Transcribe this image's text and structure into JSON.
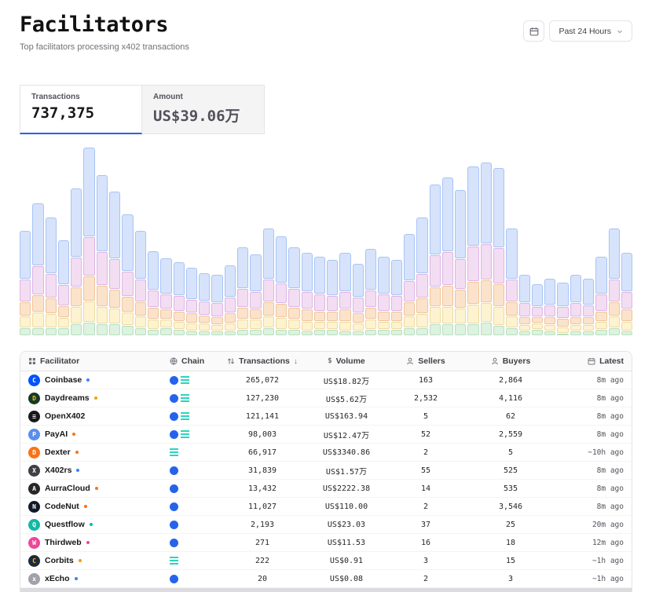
{
  "page": {
    "title": "Facilitators",
    "subtitle": "Top facilitators processing x402 transactions"
  },
  "time_filter": {
    "label": "Past 24 Hours"
  },
  "tabs": {
    "transactions": {
      "label": "Transactions",
      "value": "737,375"
    },
    "amount": {
      "label": "Amount",
      "value": "US$39.06万"
    }
  },
  "chart_data": {
    "type": "bar",
    "stacked": true,
    "bar_count": 48,
    "title": "",
    "xlabel": "",
    "ylabel": "",
    "legend": false,
    "axis_labels_visible": false,
    "ylim": [
      0,
      100
    ],
    "series": [
      {
        "name": "green-bottom",
        "fill": "#def2e0",
        "stroke": "#b7dfc0",
        "values": [
          4,
          4,
          4,
          4,
          6,
          7,
          6,
          6,
          5,
          4,
          3,
          4,
          3,
          2,
          2,
          2,
          2,
          3,
          3,
          4,
          3,
          3,
          2,
          3,
          3,
          2,
          2,
          3,
          3,
          3,
          4,
          4,
          6,
          6,
          6,
          6,
          7,
          5,
          4,
          2,
          3,
          2,
          1,
          2,
          2,
          3,
          4,
          2
        ]
      },
      {
        "name": "yellow",
        "fill": "#fdf3d0",
        "stroke": "#eedaa0",
        "values": [
          6,
          8,
          7,
          5,
          9,
          11,
          9,
          8,
          7,
          6,
          5,
          4,
          4,
          4,
          4,
          3,
          4,
          5,
          5,
          6,
          6,
          5,
          5,
          4,
          4,
          5,
          4,
          5,
          4,
          4,
          6,
          7,
          9,
          9,
          8,
          10,
          10,
          10,
          6,
          3,
          3,
          3,
          3,
          3,
          3,
          4,
          6,
          5
        ]
      },
      {
        "name": "orange",
        "fill": "#fbe3cb",
        "stroke": "#f0c49a",
        "values": [
          7,
          9,
          8,
          6,
          10,
          13,
          11,
          10,
          8,
          7,
          6,
          5,
          5,
          5,
          4,
          4,
          5,
          6,
          5,
          7,
          7,
          6,
          6,
          5,
          5,
          6,
          5,
          6,
          5,
          5,
          7,
          8,
          10,
          11,
          10,
          12,
          12,
          12,
          7,
          4,
          3,
          4,
          4,
          4,
          4,
          5,
          7,
          6
        ]
      },
      {
        "name": "pink",
        "fill": "#f3ddf2",
        "stroke": "#ddb5e4",
        "values": [
          12,
          15,
          13,
          11,
          16,
          21,
          18,
          16,
          13,
          12,
          9,
          8,
          8,
          7,
          7,
          7,
          8,
          10,
          9,
          12,
          11,
          10,
          9,
          9,
          8,
          9,
          8,
          9,
          9,
          8,
          11,
          13,
          17,
          18,
          16,
          19,
          19,
          19,
          12,
          7,
          5,
          6,
          6,
          7,
          6,
          9,
          12,
          9
        ]
      },
      {
        "name": "blue-top",
        "fill": "#d6e3fb",
        "stroke": "#a9c4f5",
        "values": [
          26,
          34,
          30,
          24,
          37,
          48,
          41,
          36,
          31,
          26,
          21,
          19,
          18,
          17,
          15,
          15,
          17,
          22,
          20,
          27,
          25,
          22,
          21,
          20,
          19,
          21,
          18,
          22,
          20,
          19,
          25,
          30,
          38,
          40,
          37,
          43,
          44,
          43,
          27,
          15,
          12,
          14,
          13,
          15,
          14,
          20,
          27,
          21
        ]
      }
    ]
  },
  "table": {
    "sort_indicator": "↓",
    "columns": [
      {
        "label": "Facilitator"
      },
      {
        "label": "Chain"
      },
      {
        "label": "Transactions"
      },
      {
        "label": "Volume"
      },
      {
        "label": "Sellers"
      },
      {
        "label": "Buyers"
      },
      {
        "label": "Latest"
      }
    ],
    "rows": [
      {
        "name": "Coinbase",
        "dot": "#3b82f6",
        "logo": {
          "bg": "#0052ff",
          "glyph": "C",
          "color": "#ffffff"
        },
        "chains": [
          "base",
          "solana"
        ],
        "transactions": "265,072",
        "volume": "US$18.82万",
        "sellers": "163",
        "buyers": "2,864",
        "latest": "8m ago"
      },
      {
        "name": "Daydreams",
        "dot": "#f59e0b",
        "logo": {
          "bg": "#163a21",
          "glyph": "D",
          "color": "#fbbf24"
        },
        "chains": [
          "base",
          "solana"
        ],
        "transactions": "127,230",
        "volume": "US$5.62万",
        "sellers": "2,532",
        "buyers": "4,116",
        "latest": "8m ago"
      },
      {
        "name": "OpenX402",
        "dot": null,
        "logo": {
          "bg": "#18181b",
          "glyph": "≡",
          "color": "#ffffff"
        },
        "chains": [
          "base",
          "solana"
        ],
        "transactions": "121,141",
        "volume": "US$163.94",
        "sellers": "5",
        "buyers": "62",
        "latest": "8m ago"
      },
      {
        "name": "PayAI",
        "dot": "#f97316",
        "logo": {
          "bg": "#5b8def",
          "glyph": "P",
          "color": "#ffffff"
        },
        "chains": [
          "base",
          "solana"
        ],
        "transactions": "98,003",
        "volume": "US$12.47万",
        "sellers": "52",
        "buyers": "2,559",
        "latest": "8m ago"
      },
      {
        "name": "Dexter",
        "dot": "#f97316",
        "logo": {
          "bg": "#f97316",
          "glyph": "D",
          "color": "#ffffff"
        },
        "chains": [
          "solana"
        ],
        "transactions": "66,917",
        "volume": "US$3340.86",
        "sellers": "2",
        "buyers": "5",
        "latest": "~10h ago"
      },
      {
        "name": "X402rs",
        "dot": "#3b82f6",
        "logo": {
          "bg": "#3f3f46",
          "glyph": "X",
          "color": "#ffffff"
        },
        "chains": [
          "base"
        ],
        "transactions": "31,839",
        "volume": "US$1.57万",
        "sellers": "55",
        "buyers": "525",
        "latest": "8m ago"
      },
      {
        "name": "AurraCloud",
        "dot": "#f97316",
        "logo": {
          "bg": "#27272a",
          "glyph": "A",
          "color": "#ffffff"
        },
        "chains": [
          "base"
        ],
        "transactions": "13,432",
        "volume": "US$2222.38",
        "sellers": "14",
        "buyers": "535",
        "latest": "8m ago"
      },
      {
        "name": "CodeNut",
        "dot": "#f97316",
        "logo": {
          "bg": "#111827",
          "glyph": "N",
          "color": "#ffffff"
        },
        "chains": [
          "base"
        ],
        "transactions": "11,027",
        "volume": "US$110.00",
        "sellers": "2",
        "buyers": "3,546",
        "latest": "8m ago"
      },
      {
        "name": "Questflow",
        "dot": "#14b8a6",
        "logo": {
          "bg": "#14b8a6",
          "glyph": "Q",
          "color": "#ffffff"
        },
        "chains": [
          "base"
        ],
        "transactions": "2,193",
        "volume": "US$23.03",
        "sellers": "37",
        "buyers": "25",
        "latest": "20m ago"
      },
      {
        "name": "Thirdweb",
        "dot": "#ec4899",
        "logo": {
          "bg": "#ec4899",
          "glyph": "W",
          "color": "#ffffff"
        },
        "chains": [
          "base"
        ],
        "transactions": "271",
        "volume": "US$11.53",
        "sellers": "16",
        "buyers": "18",
        "latest": "12m ago"
      },
      {
        "name": "Corbits",
        "dot": "#f59e0b",
        "logo": {
          "bg": "#1e293b",
          "glyph": "C",
          "color": "#fbbf24"
        },
        "chains": [
          "solana"
        ],
        "transactions": "222",
        "volume": "US$0.91",
        "sellers": "3",
        "buyers": "15",
        "latest": "~1h ago"
      },
      {
        "name": "xEcho",
        "dot": "#3b82f6",
        "logo": {
          "bg": "#a1a1aa",
          "glyph": "x",
          "color": "#ffffff"
        },
        "chains": [
          "base"
        ],
        "transactions": "20",
        "volume": "US$0.08",
        "sellers": "2",
        "buyers": "3",
        "latest": "~1h ago"
      }
    ]
  }
}
